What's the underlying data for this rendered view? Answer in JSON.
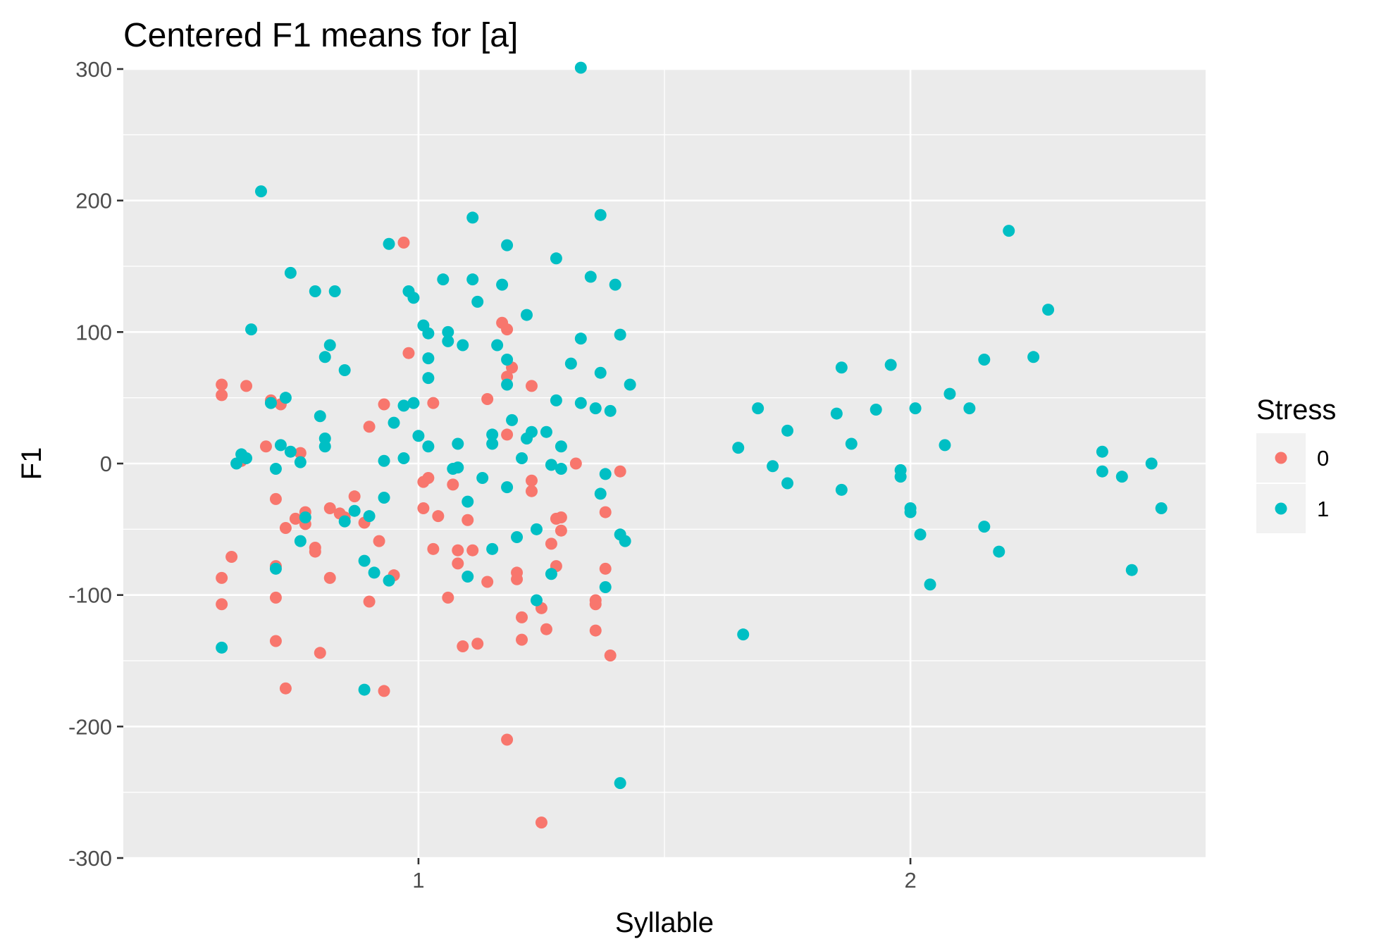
{
  "chart_data": {
    "type": "scatter",
    "title": "Centered F1 means for [a]",
    "xlabel": "Syllable",
    "ylabel": "F1",
    "xlim": [
      0.4,
      2.6
    ],
    "ylim": [
      -300,
      300
    ],
    "x_ticks": [
      1,
      2
    ],
    "x_tick_labels": [
      "1",
      "2"
    ],
    "y_ticks": [
      -300,
      -200,
      -100,
      0,
      100,
      200,
      300
    ],
    "y_tick_labels": [
      "-300",
      "-200",
      "-100",
      "0",
      "100",
      "200",
      "300"
    ],
    "grid": true,
    "legend": {
      "title": "Stress",
      "position": "right"
    },
    "series": [
      {
        "name": "0",
        "color": "#F8766D",
        "points": [
          [
            0.6,
            60
          ],
          [
            0.6,
            52
          ],
          [
            0.6,
            -87
          ],
          [
            0.6,
            -107
          ],
          [
            0.65,
            59
          ],
          [
            0.64,
            2
          ],
          [
            0.62,
            -71
          ],
          [
            0.7,
            48
          ],
          [
            0.72,
            45
          ],
          [
            0.69,
            13
          ],
          [
            0.71,
            -27
          ],
          [
            0.73,
            -49
          ],
          [
            0.71,
            -78
          ],
          [
            0.71,
            -102
          ],
          [
            0.71,
            -135
          ],
          [
            0.73,
            -171
          ],
          [
            0.76,
            8
          ],
          [
            0.75,
            -42
          ],
          [
            0.77,
            -46
          ],
          [
            0.77,
            -37
          ],
          [
            0.79,
            -64
          ],
          [
            0.79,
            -67
          ],
          [
            0.82,
            -34
          ],
          [
            0.82,
            -87
          ],
          [
            0.84,
            -38
          ],
          [
            0.85,
            -41
          ],
          [
            0.8,
            -144
          ],
          [
            0.87,
            -25
          ],
          [
            0.89,
            -45
          ],
          [
            0.9,
            28
          ],
          [
            0.92,
            -59
          ],
          [
            0.9,
            -105
          ],
          [
            0.93,
            -173
          ],
          [
            0.93,
            45
          ],
          [
            0.95,
            -85
          ],
          [
            0.97,
            168
          ],
          [
            0.98,
            84
          ],
          [
            1.01,
            -14
          ],
          [
            1.02,
            -11
          ],
          [
            1.01,
            -34
          ],
          [
            1.03,
            46
          ],
          [
            1.04,
            -40
          ],
          [
            1.03,
            -65
          ],
          [
            1.06,
            -102
          ],
          [
            1.07,
            -16
          ],
          [
            1.08,
            -76
          ],
          [
            1.08,
            -66
          ],
          [
            1.1,
            -43
          ],
          [
            1.11,
            -66
          ],
          [
            1.09,
            -139
          ],
          [
            1.12,
            -137
          ],
          [
            1.14,
            49
          ],
          [
            1.14,
            -90
          ],
          [
            1.17,
            107
          ],
          [
            1.18,
            102
          ],
          [
            1.18,
            66
          ],
          [
            1.19,
            73
          ],
          [
            1.18,
            22
          ],
          [
            1.2,
            -83
          ],
          [
            1.2,
            -88
          ],
          [
            1.21,
            -117
          ],
          [
            1.21,
            -134
          ],
          [
            1.18,
            -210
          ],
          [
            1.23,
            59
          ],
          [
            1.23,
            -13
          ],
          [
            1.23,
            -21
          ],
          [
            1.25,
            -110
          ],
          [
            1.26,
            -126
          ],
          [
            1.27,
            -61
          ],
          [
            1.28,
            -42
          ],
          [
            1.28,
            -78
          ],
          [
            1.29,
            -51
          ],
          [
            1.29,
            -41
          ],
          [
            1.32,
            0
          ],
          [
            1.36,
            -104
          ],
          [
            1.36,
            -107
          ],
          [
            1.36,
            -127
          ],
          [
            1.38,
            -37
          ],
          [
            1.38,
            -80
          ],
          [
            1.39,
            -146
          ],
          [
            1.41,
            -6
          ],
          [
            1.25,
            -273
          ]
        ]
      },
      {
        "name": "1",
        "color": "#00BFC4",
        "points": [
          [
            0.6,
            -140
          ],
          [
            0.63,
            0
          ],
          [
            0.64,
            7
          ],
          [
            0.65,
            4
          ],
          [
            0.66,
            102
          ],
          [
            0.68,
            207
          ],
          [
            0.7,
            46
          ],
          [
            0.71,
            -4
          ],
          [
            0.71,
            -80
          ],
          [
            0.72,
            14
          ],
          [
            0.73,
            50
          ],
          [
            0.74,
            145
          ],
          [
            0.74,
            9
          ],
          [
            0.76,
            1
          ],
          [
            0.76,
            -59
          ],
          [
            0.77,
            -41
          ],
          [
            0.79,
            131
          ],
          [
            0.8,
            36
          ],
          [
            0.81,
            81
          ],
          [
            0.81,
            19
          ],
          [
            0.81,
            13
          ],
          [
            0.82,
            90
          ],
          [
            0.83,
            131
          ],
          [
            0.85,
            71
          ],
          [
            0.85,
            -44
          ],
          [
            0.87,
            -36
          ],
          [
            0.89,
            -74
          ],
          [
            0.89,
            -172
          ],
          [
            0.9,
            -40
          ],
          [
            0.91,
            -83
          ],
          [
            0.93,
            2
          ],
          [
            0.93,
            -26
          ],
          [
            0.94,
            167
          ],
          [
            0.94,
            -89
          ],
          [
            0.95,
            31
          ],
          [
            0.97,
            44
          ],
          [
            0.97,
            4
          ],
          [
            0.98,
            131
          ],
          [
            0.99,
            126
          ],
          [
            0.99,
            46
          ],
          [
            1.0,
            21
          ],
          [
            1.01,
            105
          ],
          [
            1.02,
            99
          ],
          [
            1.02,
            80
          ],
          [
            1.02,
            65
          ],
          [
            1.02,
            13
          ],
          [
            1.05,
            140
          ],
          [
            1.06,
            93
          ],
          [
            1.06,
            100
          ],
          [
            1.07,
            -4
          ],
          [
            1.08,
            15
          ],
          [
            1.08,
            -3
          ],
          [
            1.09,
            90
          ],
          [
            1.1,
            -29
          ],
          [
            1.1,
            -86
          ],
          [
            1.11,
            140
          ],
          [
            1.11,
            187
          ],
          [
            1.12,
            123
          ],
          [
            1.13,
            -11
          ],
          [
            1.15,
            22
          ],
          [
            1.15,
            15
          ],
          [
            1.15,
            -65
          ],
          [
            1.16,
            90
          ],
          [
            1.17,
            136
          ],
          [
            1.18,
            166
          ],
          [
            1.18,
            79
          ],
          [
            1.18,
            60
          ],
          [
            1.18,
            -18
          ],
          [
            1.19,
            33
          ],
          [
            1.2,
            -56
          ],
          [
            1.21,
            4
          ],
          [
            1.22,
            19
          ],
          [
            1.22,
            113
          ],
          [
            1.23,
            24
          ],
          [
            1.24,
            -104
          ],
          [
            1.24,
            -50
          ],
          [
            1.26,
            24
          ],
          [
            1.27,
            -1
          ],
          [
            1.27,
            -84
          ],
          [
            1.28,
            48
          ],
          [
            1.28,
            156
          ],
          [
            1.29,
            13
          ],
          [
            1.29,
            -4
          ],
          [
            1.31,
            76
          ],
          [
            1.33,
            95
          ],
          [
            1.33,
            46
          ],
          [
            1.33,
            301
          ],
          [
            1.35,
            142
          ],
          [
            1.36,
            42
          ],
          [
            1.37,
            189
          ],
          [
            1.37,
            69
          ],
          [
            1.37,
            -23
          ],
          [
            1.38,
            -94
          ],
          [
            1.38,
            -8
          ],
          [
            1.39,
            40
          ],
          [
            1.4,
            136
          ],
          [
            1.41,
            98
          ],
          [
            1.41,
            -243
          ],
          [
            1.41,
            -54
          ],
          [
            1.42,
            -59
          ],
          [
            1.43,
            60
          ],
          [
            1.65,
            12
          ],
          [
            1.66,
            -130
          ],
          [
            1.69,
            42
          ],
          [
            1.72,
            -2
          ],
          [
            1.75,
            25
          ],
          [
            1.75,
            -15
          ],
          [
            1.85,
            38
          ],
          [
            1.86,
            73
          ],
          [
            1.86,
            -20
          ],
          [
            1.88,
            15
          ],
          [
            1.93,
            41
          ],
          [
            1.96,
            75
          ],
          [
            1.98,
            -5
          ],
          [
            1.98,
            -10
          ],
          [
            2.0,
            -34
          ],
          [
            2.0,
            -37
          ],
          [
            2.01,
            42
          ],
          [
            2.02,
            -54
          ],
          [
            2.04,
            -92
          ],
          [
            2.07,
            14
          ],
          [
            2.08,
            53
          ],
          [
            2.12,
            42
          ],
          [
            2.15,
            79
          ],
          [
            2.15,
            -48
          ],
          [
            2.18,
            -67
          ],
          [
            2.2,
            177
          ],
          [
            2.25,
            81
          ],
          [
            2.28,
            117
          ],
          [
            2.39,
            -6
          ],
          [
            2.39,
            9
          ],
          [
            2.43,
            -10
          ],
          [
            2.45,
            -81
          ],
          [
            2.49,
            0
          ],
          [
            2.51,
            -34
          ]
        ]
      }
    ]
  }
}
